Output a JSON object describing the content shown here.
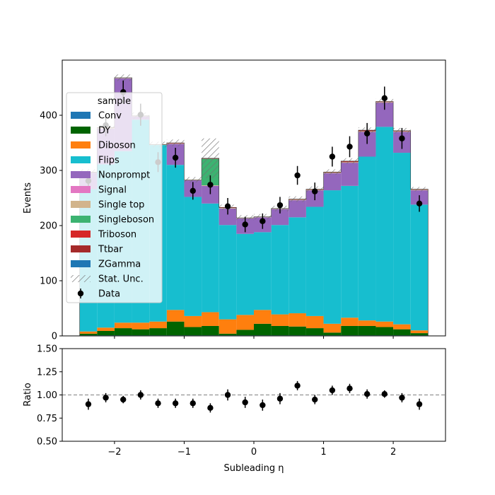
{
  "chart_data": [
    {
      "type": "bar",
      "stacked": true,
      "ylabel": "Events",
      "ylim": [
        0,
        500
      ],
      "yticks": [
        0,
        100,
        200,
        300,
        400
      ],
      "xlim": [
        -2.75,
        2.75
      ],
      "xticks": [
        -2,
        -1,
        0,
        1,
        2
      ],
      "bin_edges": [
        -2.5,
        -2.25,
        -2.0,
        -1.75,
        -1.5,
        -1.25,
        -1.0,
        -0.75,
        -0.5,
        -0.25,
        0.0,
        0.25,
        0.5,
        0.75,
        1.0,
        1.25,
        1.5,
        1.75,
        2.0,
        2.25,
        2.5
      ],
      "series": [
        {
          "name": "Conv",
          "color": "#1f77b4",
          "values": [
            1,
            1,
            1,
            1,
            1,
            1,
            1,
            1,
            1,
            1,
            1,
            1,
            1,
            1,
            1,
            1,
            1,
            1,
            1,
            1
          ]
        },
        {
          "name": "DY",
          "color": "#006400",
          "values": [
            3,
            8,
            13,
            11,
            13,
            25,
            15,
            17,
            3,
            10,
            21,
            17,
            16,
            13,
            5,
            17,
            17,
            15,
            11,
            4
          ]
        },
        {
          "name": "Diboson",
          "color": "#ff7f0e",
          "values": [
            4,
            6,
            10,
            12,
            12,
            21,
            20,
            25,
            26,
            27,
            25,
            21,
            24,
            22,
            16,
            15,
            10,
            10,
            9,
            5
          ]
        },
        {
          "name": "Flips",
          "color": "#17becf",
          "values": [
            258,
            296,
            311,
            368,
            320,
            263,
            216,
            197,
            171,
            147,
            141,
            162,
            174,
            198,
            242,
            239,
            297,
            353,
            311,
            228
          ]
        },
        {
          "name": "Nonprompt",
          "color": "#9467bd",
          "values": [
            30,
            65,
            132,
            6,
            0,
            38,
            30,
            32,
            30,
            28,
            27,
            29,
            31,
            30,
            31,
            42,
            45,
            44,
            38,
            26
          ]
        },
        {
          "name": "Signal",
          "color": "#e377c2",
          "values": [
            0,
            0,
            0,
            0,
            0,
            0,
            0,
            0,
            0,
            0,
            0,
            0,
            0,
            0,
            0,
            0,
            0,
            0,
            0,
            0
          ]
        },
        {
          "name": "Single top",
          "color": "#d2b48c",
          "values": [
            1,
            1,
            1,
            1,
            1,
            1,
            1,
            1,
            1,
            1,
            1,
            1,
            1,
            1,
            1,
            1,
            1,
            1,
            1,
            1
          ]
        },
        {
          "name": "Singleboson",
          "color": "#3cb371",
          "values": [
            0,
            0,
            0,
            0,
            0,
            0,
            0,
            48,
            0,
            0,
            0,
            0,
            0,
            0,
            0,
            0,
            0,
            0,
            0,
            0
          ]
        },
        {
          "name": "Triboson",
          "color": "#d62728",
          "values": [
            0,
            0,
            0,
            0,
            0,
            0,
            0,
            0,
            0,
            0,
            0,
            0,
            0,
            0,
            0,
            0,
            0,
            0,
            0,
            0
          ]
        },
        {
          "name": "Ttbar",
          "color": "#a52a2a",
          "values": [
            0,
            1,
            0,
            0,
            0,
            1,
            0,
            1,
            1,
            0,
            0,
            0,
            1,
            1,
            1,
            2,
            2,
            1,
            1,
            1
          ]
        },
        {
          "name": "ZGamma",
          "color": "#1f77b4",
          "values": [
            0,
            0,
            0,
            0,
            0,
            0,
            0,
            0,
            0,
            0,
            0,
            0,
            0,
            0,
            0,
            0,
            0,
            0,
            0,
            0
          ]
        }
      ],
      "stat_unc": [
        5,
        5,
        6,
        6,
        5,
        6,
        5,
        36,
        5,
        5,
        5,
        5,
        5,
        5,
        5,
        5,
        5,
        5,
        5,
        4
      ],
      "data": {
        "name": "Data",
        "x": [
          -2.375,
          -2.125,
          -1.875,
          -1.625,
          -1.375,
          -1.125,
          -0.875,
          -0.625,
          -0.375,
          -0.125,
          0.125,
          0.375,
          0.625,
          0.875,
          1.125,
          1.375,
          1.625,
          1.875,
          2.125,
          2.375
        ],
        "y": [
          281,
          382,
          442,
          401,
          315,
          323,
          263,
          274,
          235,
          202,
          208,
          237,
          291,
          262,
          325,
          343,
          367,
          431,
          358,
          240
        ],
        "yerr": [
          17,
          20,
          21,
          20,
          18,
          18,
          16,
          17,
          15,
          14,
          14,
          15,
          17,
          16,
          18,
          19,
          19,
          21,
          19,
          15
        ]
      },
      "legend": {
        "title": "sample",
        "location": "upper left",
        "stat_unc_label": "Stat. Unc."
      }
    },
    {
      "type": "scatter",
      "xlabel": "Subleading η",
      "ylabel": "Ratio",
      "ylim": [
        0.5,
        1.5
      ],
      "yticks": [
        "0.50",
        "0.75",
        "1.00",
        "1.25",
        "1.50"
      ],
      "reference_line": 1.0,
      "x": [
        -2.375,
        -2.125,
        -1.875,
        -1.625,
        -1.375,
        -1.125,
        -0.875,
        -0.625,
        -0.375,
        -0.125,
        0.125,
        0.375,
        0.625,
        0.875,
        1.125,
        1.375,
        1.625,
        1.875,
        2.125,
        2.375
      ],
      "y": [
        0.9,
        0.97,
        0.95,
        1.0,
        0.91,
        0.91,
        0.91,
        0.86,
        1.0,
        0.92,
        0.89,
        0.96,
        1.1,
        0.95,
        1.05,
        1.07,
        1.01,
        1.01,
        0.97,
        0.9
      ],
      "yerr": [
        0.06,
        0.05,
        0.04,
        0.05,
        0.05,
        0.05,
        0.05,
        0.05,
        0.06,
        0.06,
        0.06,
        0.06,
        0.05,
        0.05,
        0.05,
        0.05,
        0.05,
        0.04,
        0.05,
        0.06
      ]
    }
  ]
}
